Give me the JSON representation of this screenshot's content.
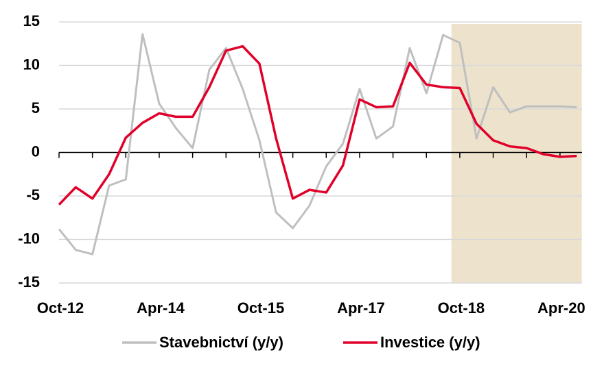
{
  "chart_data": {
    "type": "line",
    "categories": [
      "Oct-12",
      null,
      null,
      null,
      null,
      null,
      "Apr-14",
      null,
      null,
      null,
      null,
      null,
      "Oct-15",
      null,
      null,
      null,
      null,
      null,
      "Apr-17",
      null,
      null,
      null,
      null,
      null,
      "Oct-18",
      null,
      null,
      null,
      null,
      null,
      "Apr-20",
      null
    ],
    "series": [
      {
        "name": "Stavebnictví (y/y)",
        "color": "#bfbfbf",
        "values": [
          -8.8,
          -11.2,
          -11.7,
          -3.8,
          -3.1,
          13.6,
          5.6,
          2.8,
          0.5,
          9.5,
          12.0,
          7.3,
          1.4,
          -6.9,
          -8.7,
          -6.1,
          -1.6,
          1.0,
          7.3,
          1.6,
          3.0,
          12.0,
          6.8,
          13.5,
          12.6,
          1.6,
          7.5,
          4.6,
          5.3,
          5.3,
          5.3,
          5.2
        ]
      },
      {
        "name": "Investice (y/y)",
        "color": "#e0002a",
        "values": [
          -6.0,
          -4.0,
          -5.3,
          -2.5,
          1.7,
          3.4,
          4.5,
          4.1,
          4.1,
          7.5,
          11.7,
          12.2,
          10.2,
          1.6,
          -5.3,
          -4.3,
          -4.6,
          -1.5,
          6.1,
          5.2,
          5.3,
          10.3,
          7.8,
          7.5,
          7.4,
          3.3,
          1.4,
          0.7,
          0.5,
          -0.2,
          -0.5,
          -0.4
        ]
      }
    ],
    "ylim": [
      -15,
      15
    ],
    "yticks": [
      -15,
      -10,
      -5,
      0,
      5,
      10,
      15
    ],
    "grid": true,
    "shaded_range": [
      23.5,
      31.3
    ],
    "shade_color": "#ede3cc",
    "legend": "bottom"
  }
}
